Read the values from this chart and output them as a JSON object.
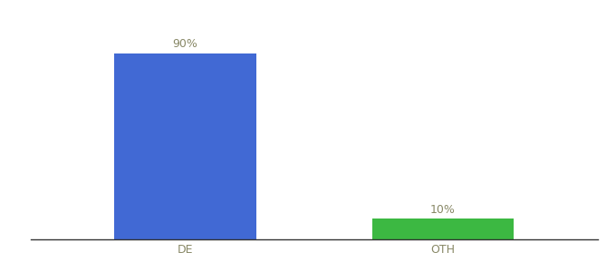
{
  "categories": [
    "DE",
    "OTH"
  ],
  "values": [
    90,
    10
  ],
  "bar_colors": [
    "#4169d4",
    "#3cb842"
  ],
  "label_texts": [
    "90%",
    "10%"
  ],
  "ylim": [
    0,
    100
  ],
  "background_color": "#ffffff",
  "label_fontsize": 9,
  "tick_fontsize": 9,
  "label_color": "#888866",
  "tick_color": "#888866",
  "bar_width": 0.55
}
